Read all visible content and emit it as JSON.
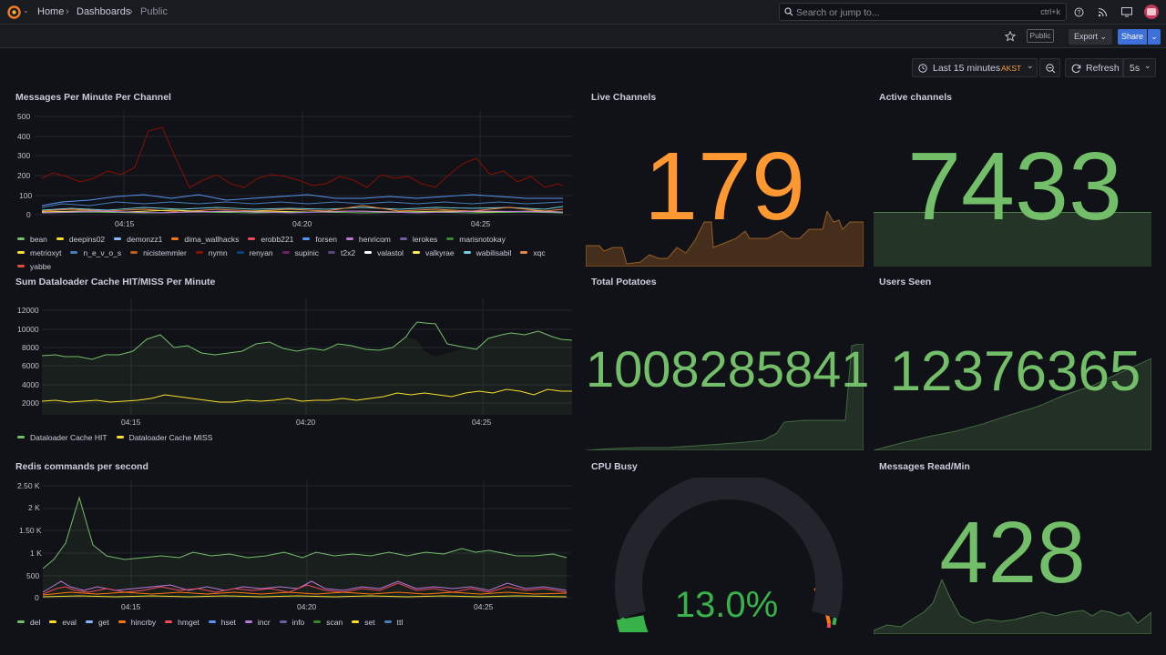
{
  "breadcrumb": {
    "home": "Home",
    "dashboards": "Dashboards",
    "current": "Public"
  },
  "search": {
    "placeholder": "Search or jump to...",
    "shortcut": "ctrl+k"
  },
  "toolbar": {
    "public_badge": "Public",
    "export_label": "Export",
    "share_label": "Share"
  },
  "time": {
    "range": "Last 15 minutes",
    "tz": "AKST",
    "refresh_label": "Refresh",
    "interval": "5s"
  },
  "x_ticks": [
    "04:15",
    "04:20",
    "04:25"
  ],
  "panels": {
    "messages_per_minute": {
      "title": "Messages Per Minute Per Channel",
      "y_ticks": [
        "500",
        "400",
        "300",
        "200",
        "100",
        "0"
      ],
      "legend": [
        {
          "name": "bean",
          "color": "#73bf69"
        },
        {
          "name": "deepins02",
          "color": "#fade2a"
        },
        {
          "name": "demonzz1",
          "color": "#8ab8ff"
        },
        {
          "name": "dima_wallhacks",
          "color": "#ff780a"
        },
        {
          "name": "erobb221",
          "color": "#f2495c"
        },
        {
          "name": "forsen",
          "color": "#5794f2"
        },
        {
          "name": "henricom",
          "color": "#b877d9"
        },
        {
          "name": "lerokes",
          "color": "#705da0"
        },
        {
          "name": "marisnotokay",
          "color": "#37872d"
        },
        {
          "name": "metrioxyt",
          "color": "#fade2a"
        },
        {
          "name": "n_e_v_o_s",
          "color": "#447ebc"
        },
        {
          "name": "nicistemmler",
          "color": "#c15c17"
        },
        {
          "name": "nymn",
          "color": "#890f02"
        },
        {
          "name": "renyan",
          "color": "#0a437c"
        },
        {
          "name": "supinic",
          "color": "#6d1f62"
        },
        {
          "name": "t2x2",
          "color": "#584477"
        },
        {
          "name": "valastol",
          "color": "#ffffff"
        },
        {
          "name": "valkyrae",
          "color": "#ffee52"
        },
        {
          "name": "wabilisabil",
          "color": "#6ed0e0"
        },
        {
          "name": "xqc",
          "color": "#ef843c"
        },
        {
          "name": "yabbe",
          "color": "#e24d42"
        }
      ]
    },
    "dataloader": {
      "title": "Sum Dataloader Cache HIT/MISS Per Minute",
      "y_ticks": [
        "12000",
        "10000",
        "8000",
        "6000",
        "4000",
        "2000"
      ],
      "legend": [
        {
          "name": "Dataloader Cache HIT",
          "color": "#73bf69"
        },
        {
          "name": "Dataloader Cache MISS",
          "color": "#fade2a"
        }
      ]
    },
    "redis": {
      "title": "Redis commands per second",
      "y_ticks": [
        "2.50 K",
        "2 K",
        "1.50 K",
        "1 K",
        "500",
        "0"
      ],
      "legend": [
        {
          "name": "del",
          "color": "#73bf69"
        },
        {
          "name": "eval",
          "color": "#fade2a"
        },
        {
          "name": "get",
          "color": "#8ab8ff"
        },
        {
          "name": "hincrby",
          "color": "#ff780a"
        },
        {
          "name": "hmget",
          "color": "#f2495c"
        },
        {
          "name": "hset",
          "color": "#5794f2"
        },
        {
          "name": "incr",
          "color": "#b877d9"
        },
        {
          "name": "info",
          "color": "#705da0"
        },
        {
          "name": "scan",
          "color": "#37872d"
        },
        {
          "name": "set",
          "color": "#fade2a"
        },
        {
          "name": "ttl",
          "color": "#447ebc"
        }
      ]
    },
    "live_channels": {
      "title": "Live Channels",
      "value": "179",
      "color": "#ff9830"
    },
    "active_channels": {
      "title": "Active channels",
      "value": "7433",
      "color": "#73bf69"
    },
    "total_potatoes": {
      "title": "Total Potatoes",
      "value": "1008285841",
      "color": "#73bf69"
    },
    "users_seen": {
      "title": "Users Seen",
      "value": "12376365",
      "color": "#73bf69"
    },
    "cpu_busy": {
      "title": "CPU Busy",
      "value": "13.0%",
      "gauge_fraction": 0.13,
      "color": "#37b34a"
    },
    "messages_read": {
      "title": "Messages Read/Min",
      "value": "428",
      "color": "#73bf69"
    }
  }
}
